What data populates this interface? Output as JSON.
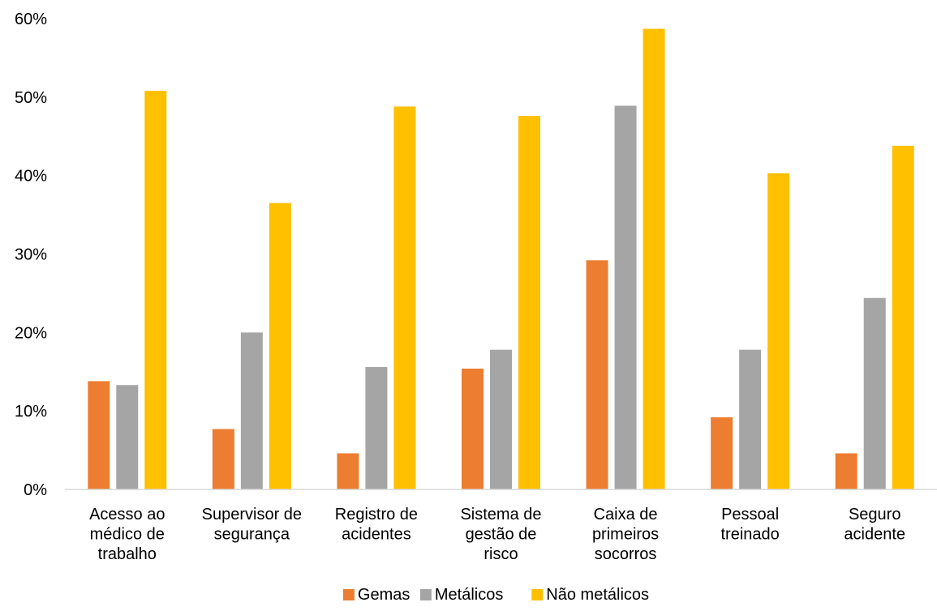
{
  "chart_data": {
    "type": "bar",
    "title": "",
    "xlabel": "",
    "ylabel": "",
    "ylim": [
      0,
      0.6
    ],
    "yticks": [
      0,
      0.1,
      0.2,
      0.3,
      0.4,
      0.5,
      0.6
    ],
    "ytick_labels": [
      "0%",
      "10%",
      "20%",
      "30%",
      "40%",
      "50%",
      "60%"
    ],
    "grid": false,
    "legend_position": "bottom",
    "categories": [
      [
        "Acesso ao",
        "médico de",
        "trabalho"
      ],
      [
        "Supervisor de",
        "segurança"
      ],
      [
        "Registro de",
        "acidentes"
      ],
      [
        "Sistema de",
        "gestão de",
        "risco"
      ],
      [
        "Caixa de",
        "primeiros",
        "socorros"
      ],
      [
        "Pessoal",
        "treinado"
      ],
      [
        "Seguro",
        "acidente"
      ]
    ],
    "series": [
      {
        "name": "Gemas",
        "color": "#ED7D31",
        "values": [
          0.138,
          0.077,
          0.046,
          0.154,
          0.292,
          0.092,
          0.046
        ]
      },
      {
        "name": "Metálicos",
        "color": "#A5A5A5",
        "values": [
          0.133,
          0.2,
          0.156,
          0.178,
          0.489,
          0.178,
          0.244
        ]
      },
      {
        "name": "Não metálicos",
        "color": "#FFC000",
        "values": [
          0.508,
          0.365,
          0.488,
          0.476,
          0.587,
          0.403,
          0.438
        ]
      }
    ]
  }
}
